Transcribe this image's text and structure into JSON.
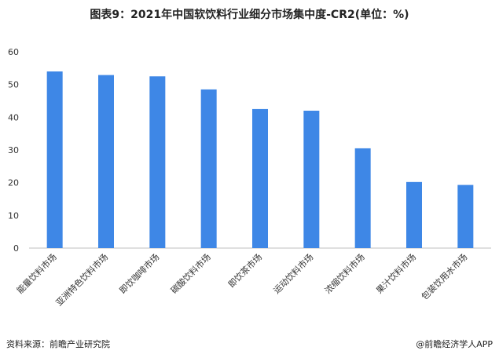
{
  "chart_data": {
    "type": "bar",
    "title": "图表9：2021年中国软饮料行业细分市场集中度-CR2(单位：%)",
    "categories": [
      "能量饮料市场",
      "亚洲特色饮料市场",
      "即饮咖啡市场",
      "碳酸饮料市场",
      "即饮茶市场",
      "运动饮料市场",
      "浓缩饮料市场",
      "果汁饮料市场",
      "包装饮用水市场"
    ],
    "values": [
      54.0,
      52.9,
      52.5,
      48.5,
      42.5,
      42.0,
      30.5,
      20.2,
      19.3
    ],
    "ylim": [
      0,
      60
    ],
    "yticks": [
      0,
      10,
      20,
      30,
      40,
      50,
      60
    ],
    "bar_color": "#3E87E6",
    "grid": false
  },
  "footer": {
    "source": "资料来源：前瞻产业研究院",
    "credit": "@前瞻经济学人APP"
  }
}
